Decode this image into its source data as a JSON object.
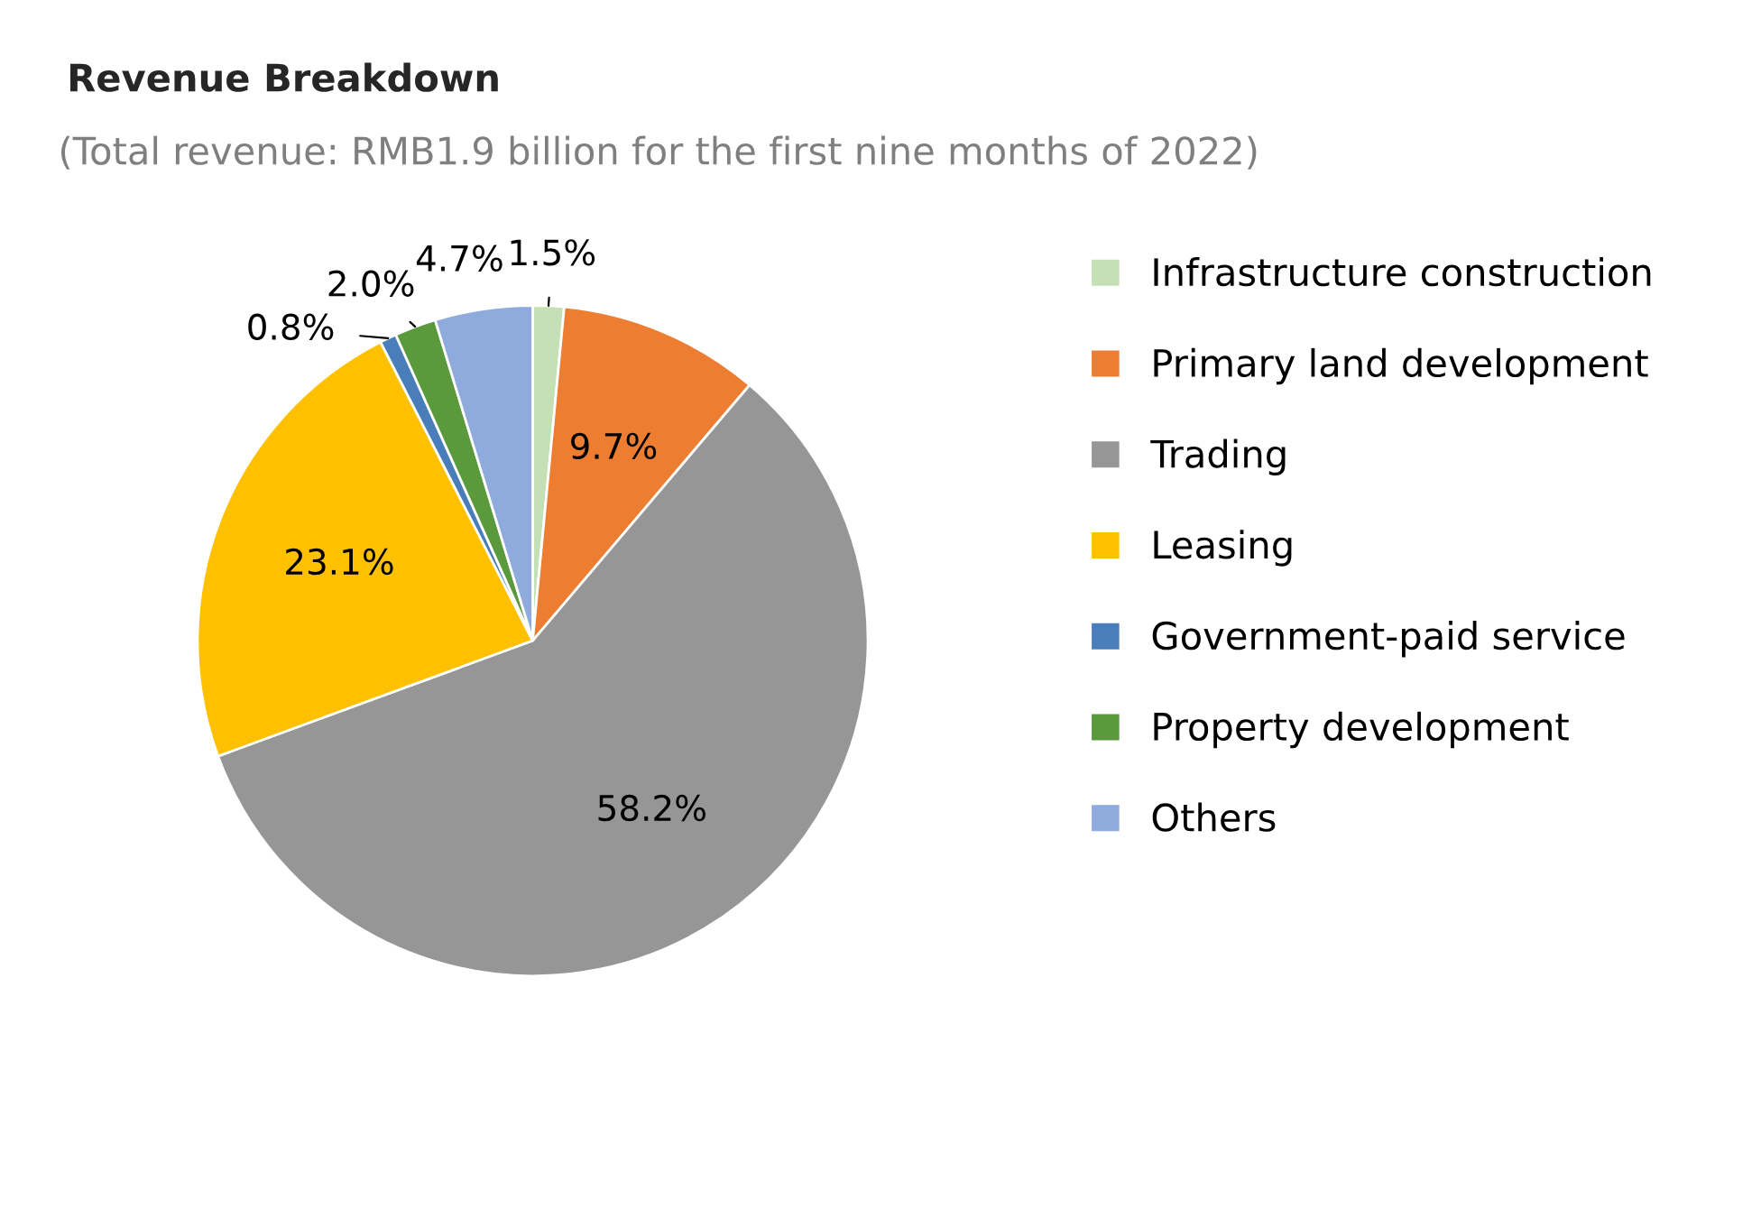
{
  "chart_data": {
    "type": "pie",
    "title": "Revenue Breakdown",
    "subtitle": "(Total revenue: RMB1.9 billion for the first nine months of 2022)",
    "categories": [
      "Infrastructure construction",
      "Primary land development",
      "Trading",
      "Leasing",
      "Government-paid service",
      "Property development",
      "Others"
    ],
    "values": [
      1.5,
      9.7,
      58.2,
      23.1,
      0.8,
      2.0,
      4.7
    ],
    "colors": [
      "#c5e0b4",
      "#ed7d31",
      "#969696",
      "#ffc000",
      "#4a7ebb",
      "#5a9a3c",
      "#8faadc"
    ],
    "value_labels": [
      "1.5%",
      "9.7%",
      "58.2%",
      "23.1%",
      "0.8%",
      "2.0%",
      "4.7%"
    ],
    "legend": "right"
  }
}
